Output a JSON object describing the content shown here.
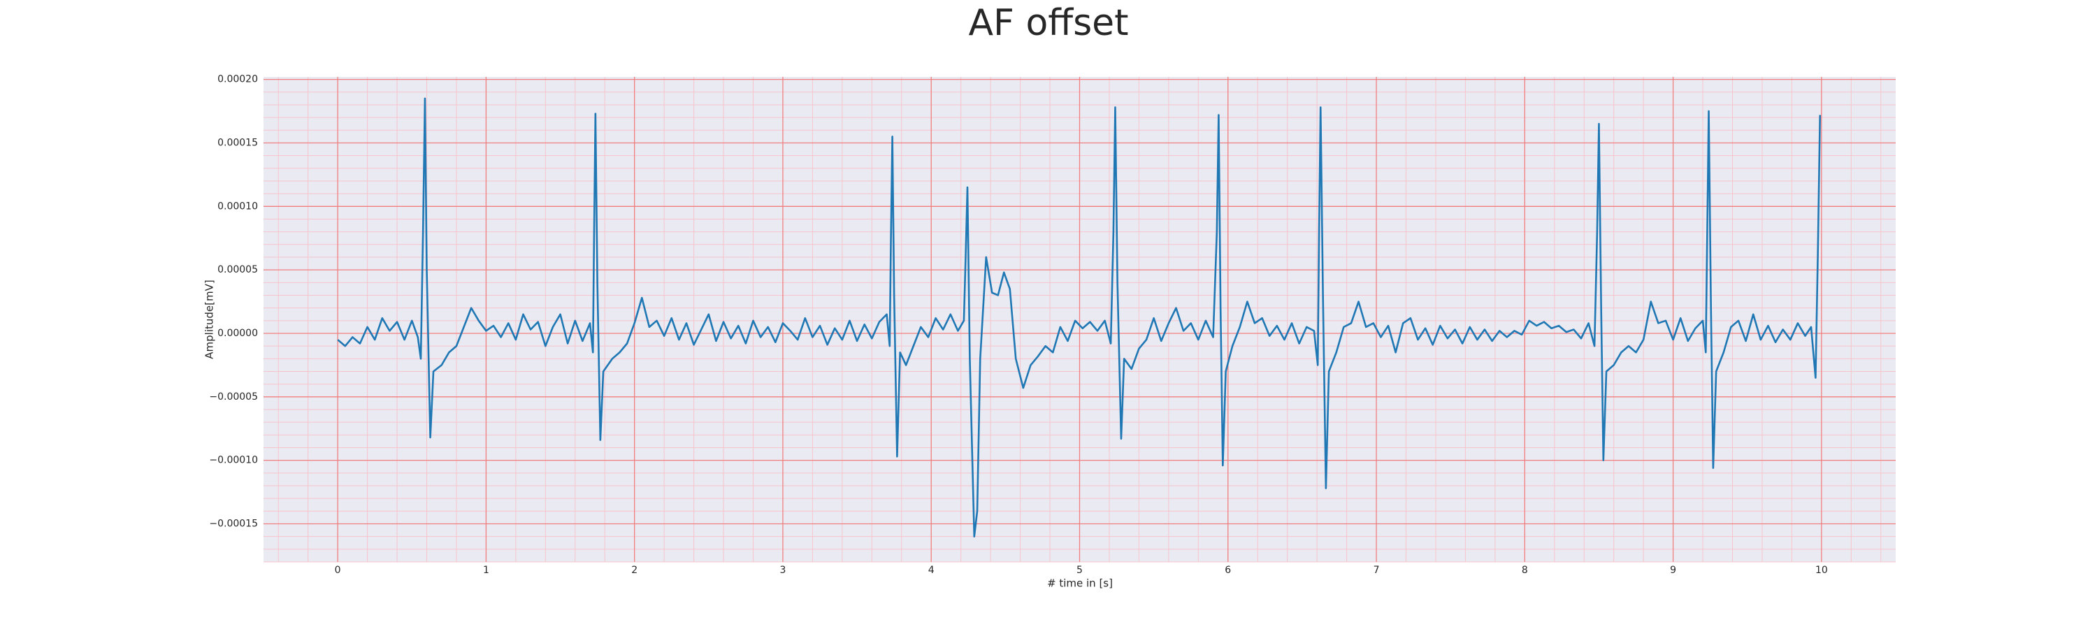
{
  "chart_data": {
    "type": "line",
    "title": "AF offset",
    "xlabel": "# time in [s]",
    "ylabel": "Amplitude[mV]",
    "xlim": [
      -0.5,
      10.5
    ],
    "ylim": [
      -0.00018,
      0.000202
    ],
    "xticks": [
      0,
      1,
      2,
      3,
      4,
      5,
      6,
      7,
      8,
      9,
      10
    ],
    "yticks": [
      {
        "value": -0.00015,
        "label": "−0.00015"
      },
      {
        "value": -0.0001,
        "label": "−0.00010"
      },
      {
        "value": -5e-05,
        "label": "−0.00005"
      },
      {
        "value": 0,
        "label": "0.00000"
      },
      {
        "value": 5e-05,
        "label": "0.00005"
      },
      {
        "value": 0.0001,
        "label": "0.00010"
      },
      {
        "value": 0.00015,
        "label": "0.00015"
      },
      {
        "value": 0.0002,
        "label": "0.00020"
      }
    ],
    "grid": true,
    "minor_grid": true,
    "background": "#eaeaf2",
    "grid_color": "#f08080",
    "minor_grid_color": "#f7c4cc",
    "series": [
      {
        "color": "#1f77b4",
        "x": [
          0.0,
          0.05,
          0.1,
          0.15,
          0.2,
          0.25,
          0.3,
          0.35,
          0.4,
          0.45,
          0.5,
          0.54,
          0.56,
          0.575,
          0.588,
          0.6,
          0.624,
          0.645,
          0.7,
          0.75,
          0.8,
          0.85,
          0.9,
          0.95,
          1.0,
          1.05,
          1.1,
          1.15,
          1.2,
          1.25,
          1.3,
          1.35,
          1.4,
          1.45,
          1.5,
          1.55,
          1.6,
          1.65,
          1.7,
          1.72,
          1.728,
          1.737,
          1.75,
          1.77,
          1.79,
          1.85,
          1.9,
          1.95,
          2.0,
          2.05,
          2.1,
          2.15,
          2.2,
          2.25,
          2.3,
          2.35,
          2.4,
          2.45,
          2.5,
          2.55,
          2.6,
          2.65,
          2.7,
          2.75,
          2.8,
          2.85,
          2.9,
          2.95,
          3.0,
          3.05,
          3.1,
          3.15,
          3.2,
          3.25,
          3.3,
          3.35,
          3.4,
          3.45,
          3.5,
          3.55,
          3.6,
          3.65,
          3.7,
          3.72,
          3.728,
          3.738,
          3.75,
          3.77,
          3.79,
          3.83,
          3.88,
          3.93,
          3.98,
          4.03,
          4.08,
          4.13,
          4.18,
          4.22,
          4.232,
          4.244,
          4.26,
          4.29,
          4.31,
          4.33,
          4.37,
          4.41,
          4.45,
          4.49,
          4.53,
          4.57,
          4.62,
          4.67,
          4.72,
          4.77,
          4.82,
          4.87,
          4.92,
          4.97,
          5.02,
          5.07,
          5.12,
          5.17,
          5.21,
          5.228,
          5.24,
          5.255,
          5.28,
          5.3,
          5.35,
          5.4,
          5.45,
          5.5,
          5.55,
          5.6,
          5.65,
          5.7,
          5.75,
          5.8,
          5.85,
          5.9,
          5.925,
          5.937,
          5.95,
          5.965,
          5.985,
          6.03,
          6.08,
          6.13,
          6.18,
          6.23,
          6.28,
          6.33,
          6.38,
          6.43,
          6.48,
          6.53,
          6.58,
          6.605,
          6.614,
          6.624,
          6.64,
          6.66,
          6.68,
          6.73,
          6.78,
          6.83,
          6.88,
          6.93,
          6.98,
          7.03,
          7.08,
          7.13,
          7.18,
          7.23,
          7.28,
          7.33,
          7.38,
          7.43,
          7.48,
          7.53,
          7.58,
          7.63,
          7.68,
          7.73,
          7.78,
          7.83,
          7.88,
          7.93,
          7.98,
          8.03,
          8.08,
          8.13,
          8.18,
          8.23,
          8.28,
          8.33,
          8.38,
          8.43,
          8.47,
          8.488,
          8.5,
          8.515,
          8.53,
          8.55,
          8.6,
          8.65,
          8.7,
          8.75,
          8.8,
          8.85,
          8.9,
          8.95,
          9.0,
          9.05,
          9.1,
          9.15,
          9.2,
          9.22,
          9.23,
          9.24,
          9.255,
          9.27,
          9.29,
          9.34,
          9.39,
          9.44,
          9.49,
          9.54,
          9.59,
          9.64,
          9.69,
          9.74,
          9.79,
          9.84,
          9.89,
          9.93,
          9.96,
          9.975,
          9.99
        ],
        "values": [
          -5e-06,
          -1e-05,
          -3e-06,
          -8e-06,
          5e-06,
          -5e-06,
          1.2e-05,
          2e-06,
          9e-06,
          -5e-06,
          1e-05,
          -3e-06,
          -2e-05,
          8e-05,
          0.000185,
          5e-05,
          -8.2e-05,
          -3e-05,
          -2.5e-05,
          -1.5e-05,
          -1e-05,
          5e-06,
          2e-05,
          1e-05,
          2e-06,
          6e-06,
          -3e-06,
          8e-06,
          -5e-06,
          1.5e-05,
          3e-06,
          9e-06,
          -1e-05,
          5e-06,
          1.5e-05,
          -8e-06,
          1e-05,
          -6e-06,
          8e-06,
          -1.5e-05,
          8e-05,
          0.000173,
          4e-05,
          -8.4e-05,
          -3e-05,
          -2e-05,
          -1.5e-05,
          -8e-06,
          8e-06,
          2.8e-05,
          5e-06,
          1e-05,
          -2e-06,
          1.2e-05,
          -5e-06,
          8e-06,
          -9e-06,
          3e-06,
          1.5e-05,
          -6e-06,
          9e-06,
          -4e-06,
          6e-06,
          -8e-06,
          1e-05,
          -3e-06,
          5e-06,
          -7e-06,
          8e-06,
          2e-06,
          -5e-06,
          1.2e-05,
          -3e-06,
          6e-06,
          -9e-06,
          4e-06,
          -5e-06,
          1e-05,
          -6e-06,
          7e-06,
          -4e-06,
          9e-06,
          1.5e-05,
          -1e-05,
          7e-05,
          0.000155,
          3e-05,
          -9.7e-05,
          -1.5e-05,
          -2.5e-05,
          -1e-05,
          5e-06,
          -3e-06,
          1.2e-05,
          3e-06,
          1.5e-05,
          2e-06,
          1e-05,
          6e-05,
          0.000115,
          -2e-05,
          -0.00016,
          -0.00014,
          -2e-05,
          6e-05,
          3.2e-05,
          3e-05,
          4.8e-05,
          3.5e-05,
          -2e-05,
          -4.3e-05,
          -2.5e-05,
          -1.8e-05,
          -1e-05,
          -1.5e-05,
          5e-06,
          -6e-06,
          1e-05,
          4e-06,
          9e-06,
          2e-06,
          1e-05,
          -8e-06,
          8e-05,
          0.000178,
          4e-05,
          -8.3e-05,
          -2e-05,
          -2.8e-05,
          -1.2e-05,
          -5e-06,
          1.2e-05,
          -6e-06,
          8e-06,
          2e-05,
          2e-06,
          8e-06,
          -5e-06,
          1e-05,
          -3e-06,
          8e-05,
          0.000172,
          2e-05,
          -0.000104,
          -3e-05,
          -1e-05,
          5e-06,
          2.5e-05,
          8e-06,
          1.2e-05,
          -2e-06,
          6e-06,
          -5e-06,
          8e-06,
          -8e-06,
          5e-06,
          2e-06,
          -2.5e-05,
          8e-05,
          0.000178,
          3e-05,
          -0.000122,
          -3e-05,
          -1.5e-05,
          5e-06,
          8e-06,
          2.5e-05,
          5e-06,
          8e-06,
          -3e-06,
          6e-06,
          -1.5e-05,
          8e-06,
          1.2e-05,
          -5e-06,
          4e-06,
          -9e-06,
          6e-06,
          -4e-06,
          3e-06,
          -8e-06,
          5e-06,
          -5e-06,
          3e-06,
          -6e-06,
          2e-06,
          -3e-06,
          2e-06,
          -1e-06,
          1e-05,
          6e-06,
          9e-06,
          4e-06,
          6e-06,
          1e-06,
          3e-06,
          -4e-06,
          8e-06,
          -1e-05,
          8e-05,
          0.000165,
          2e-05,
          -0.0001,
          -3e-05,
          -2.5e-05,
          -1.5e-05,
          -1e-05,
          -1.5e-05,
          -5e-06,
          2.5e-05,
          8e-06,
          1e-05,
          -5e-06,
          1.2e-05,
          -6e-06,
          4e-06,
          1e-05,
          -1.5e-05,
          8e-05,
          0.000175,
          2e-05,
          -0.000106,
          -3e-05,
          -1.5e-05,
          5e-06,
          1e-05,
          -6e-06,
          1.5e-05,
          -5e-06,
          6e-06,
          -7e-06,
          3e-06,
          -5e-06,
          8e-06,
          -2e-06,
          5e-06,
          -3.5e-05,
          6e-05,
          0.000172
        ]
      }
    ]
  }
}
